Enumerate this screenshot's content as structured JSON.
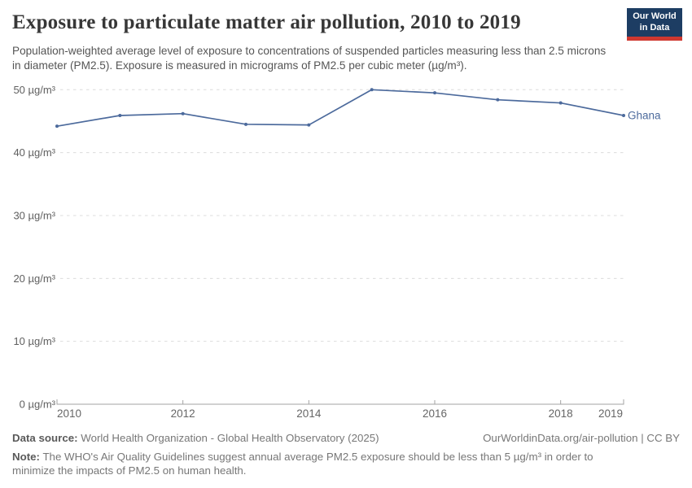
{
  "header": {
    "title": "Exposure to particulate matter air pollution, 2010 to 2019",
    "subtitle": "Population-weighted average level of exposure to concentrations of suspended particles measuring less than 2.5 microns in diameter (PM2.5). Exposure is measured in micrograms of PM2.5 per cubic meter (µg/m³).",
    "logo": {
      "line1": "Our World",
      "line2": "in Data"
    }
  },
  "chart_data": {
    "type": "line",
    "title": "Exposure to particulate matter air pollution, 2010 to 2019",
    "x": [
      2010,
      2011,
      2012,
      2013,
      2014,
      2015,
      2016,
      2017,
      2018,
      2019
    ],
    "series": [
      {
        "name": "Ghana",
        "values": [
          44.2,
          45.9,
          46.2,
          44.5,
          44.4,
          50.0,
          49.5,
          48.4,
          47.9,
          45.9
        ]
      }
    ],
    "unit": "µg/m³",
    "ylim": [
      0,
      50
    ],
    "yticks": [
      0,
      10,
      20,
      30,
      40,
      50
    ],
    "xticks": [
      2010,
      2012,
      2014,
      2016,
      2018,
      2019
    ],
    "grid": "horizontal-dashed",
    "legend_position": "end-of-line-label"
  },
  "footer": {
    "datasource_label": "Data source:",
    "datasource": " World Health Organization - Global Health Observatory (2025)",
    "citation": "OurWorldinData.org/air-pollution | CC BY",
    "note_label": "Note:",
    "note": " The WHO's Air Quality Guidelines suggest annual average PM2.5 exposure should be less than 5 µg/m³ in order to minimize the impacts of PM2.5 on human health."
  },
  "colors": {
    "accent_line": "#4c6a9c",
    "logo_navy": "#1d3d63",
    "logo_red": "#cf3830",
    "grid": "#dcdcdc",
    "axis": "#a3a3a3",
    "title_text": "#373737",
    "subtitle_text": "#555555",
    "footer_text": "#777777"
  }
}
